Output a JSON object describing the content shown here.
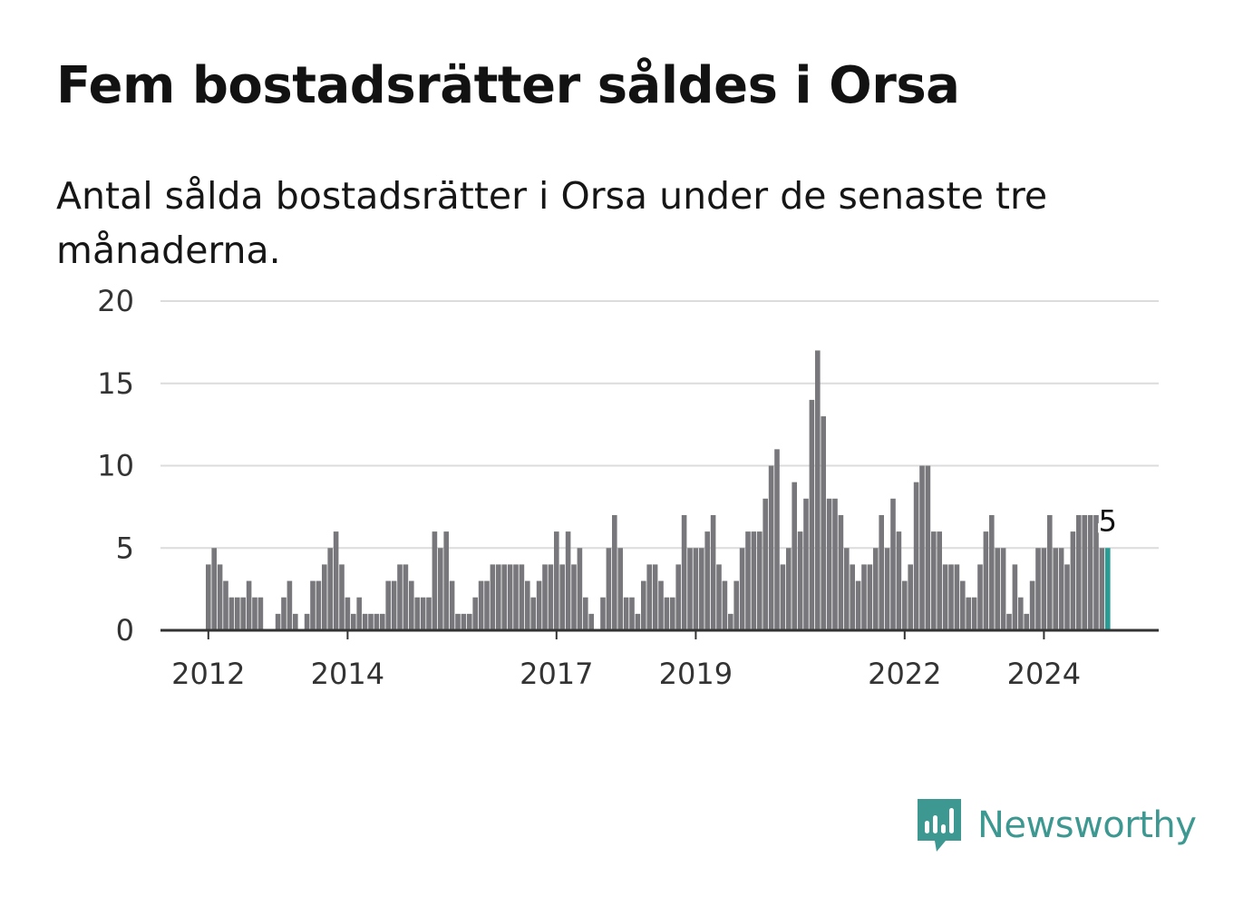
{
  "header": {
    "title": "Fem bostadsrätter såldes i Orsa",
    "subtitle": "Antal sålda bostadsrätter i Orsa under de senaste tre månaderna."
  },
  "brand": {
    "name": "Newsworthy",
    "icon": "newsworthy-logo-icon",
    "color": "#3c9890"
  },
  "chart_data": {
    "type": "bar",
    "title": "Fem bostadsrätter såldes i Orsa",
    "subtitle": "Antal sålda bostadsrätter i Orsa under de senaste tre månaderna.",
    "xlabel": "",
    "ylabel": "",
    "ylim": [
      0,
      20
    ],
    "yticks": [
      "0",
      "5",
      "10",
      "15",
      "20"
    ],
    "xticks": [
      "2012",
      "2014",
      "2017",
      "2019",
      "2022",
      "2024"
    ],
    "grid": true,
    "legend": "none",
    "bar_color": "#78777b",
    "highlight_color": "#2a9b95",
    "end_label": "5",
    "series": [
      {
        "values": [
          4,
          5,
          4,
          3,
          2,
          2,
          2,
          3,
          2,
          2,
          0,
          0,
          1,
          2,
          3,
          1,
          0,
          1,
          3,
          3,
          4,
          5,
          6,
          4,
          2,
          1,
          2,
          1,
          1,
          1,
          1,
          3,
          3,
          4,
          4,
          3,
          2,
          2,
          2,
          6,
          5,
          6,
          3,
          1,
          1,
          1,
          2,
          3,
          3,
          4,
          4,
          4,
          4,
          4,
          4,
          3,
          2,
          3,
          4,
          4,
          6,
          4,
          6,
          4,
          5,
          2,
          1,
          0,
          2,
          5,
          7,
          5,
          2,
          2,
          1,
          3,
          4,
          4,
          3,
          2,
          2,
          4,
          7,
          5,
          5,
          5,
          6,
          7,
          4,
          3,
          1,
          3,
          5,
          6,
          6,
          6,
          8,
          10,
          11,
          4,
          5,
          9,
          6,
          8,
          14,
          17,
          13,
          8,
          8,
          7,
          5,
          4,
          3,
          4,
          4,
          5,
          7,
          5,
          8,
          6,
          3,
          4,
          9,
          10,
          10,
          6,
          6,
          4,
          4,
          4,
          3,
          2,
          2,
          4,
          6,
          7,
          5,
          5,
          1,
          4,
          2,
          1,
          3,
          5,
          5,
          7,
          5,
          5,
          4,
          6,
          7,
          7,
          7,
          7,
          5,
          5
        ]
      }
    ]
  }
}
